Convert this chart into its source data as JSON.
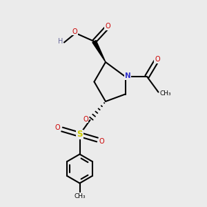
{
  "bg_color": "#ebebeb",
  "atom_colors": {
    "C": "#000000",
    "N": "#3333cc",
    "O": "#cc0000",
    "S": "#cccc00",
    "H": "#666699"
  },
  "line_color": "#000000",
  "line_width": 1.5
}
